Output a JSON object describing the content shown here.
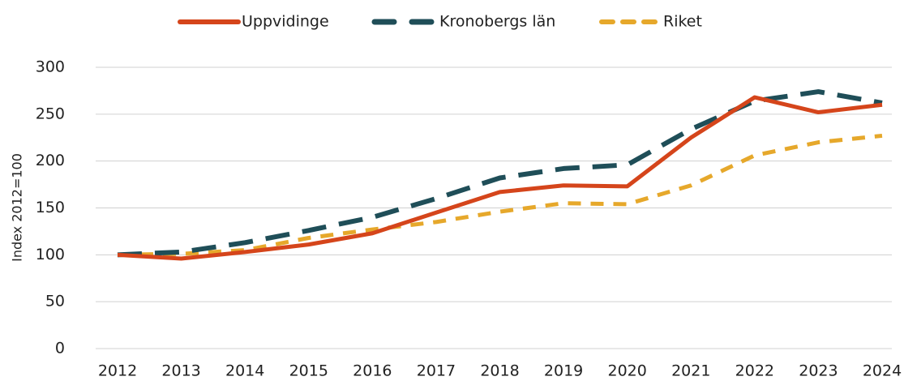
{
  "chart_data": {
    "type": "line",
    "y_label": "Index 2012=100",
    "categories": [
      "2012",
      "2013",
      "2014",
      "2015",
      "2016",
      "2017",
      "2018",
      "2019",
      "2020",
      "2021",
      "2022",
      "2023",
      "2024"
    ],
    "series": [
      {
        "name": "Uppvidinge",
        "color": "#d5451b",
        "dash": "solid",
        "values": [
          100,
          96,
          103,
          111,
          123,
          145,
          167,
          174,
          173,
          225,
          268,
          252,
          260
        ]
      },
      {
        "name": "Kronobergs län",
        "color": "#1f4e58",
        "dash": "long",
        "values": [
          100,
          103,
          113,
          126,
          140,
          160,
          182,
          192,
          196,
          234,
          264,
          274,
          262
        ]
      },
      {
        "name": "Riket",
        "color": "#e6a82b",
        "dash": "short",
        "values": [
          100,
          101,
          105,
          118,
          127,
          135,
          146,
          155,
          154,
          174,
          206,
          220,
          227
        ]
      }
    ],
    "ylim": [
      0,
      300
    ],
    "yticks": [
      0,
      50,
      100,
      150,
      200,
      250,
      300
    ],
    "grid": true,
    "legend": "top"
  }
}
